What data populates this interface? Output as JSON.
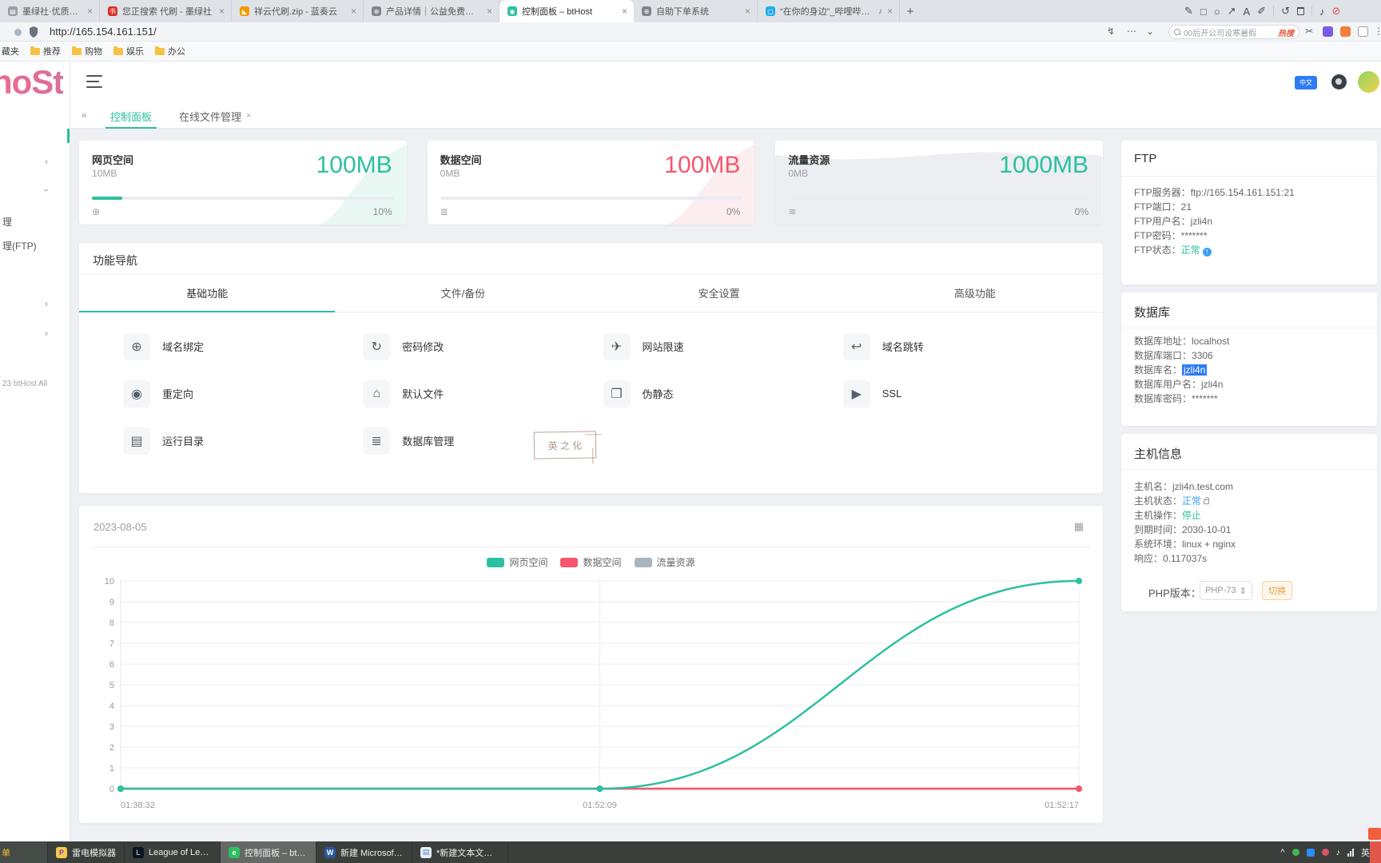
{
  "browser": {
    "tabs": [
      {
        "title": "墨绿社·优质网站源码与模板",
        "favicon": "#9aa0a6",
        "glyph": "▤"
      },
      {
        "title": "您正搜索 代刷 - 墨绿社",
        "favicon": "#d93025",
        "glyph": "书"
      },
      {
        "title": "祥云代刷.zip - 蓝奏云",
        "favicon": "#f29900",
        "glyph": "◣"
      },
      {
        "title": "产品详情｜公益免费主机互联",
        "favicon": "#80868b",
        "glyph": "⊕"
      },
      {
        "title": "控制面板 – btHost",
        "favicon": "#2cc0a0",
        "glyph": "◉",
        "active": true
      },
      {
        "title": "自助下单系统",
        "favicon": "#80868b",
        "glyph": "⊕"
      },
      {
        "title": "“在你的身边”_哔哩哔哩_b",
        "favicon": "#23ade5",
        "glyph": "▢",
        "audio": true
      }
    ],
    "new_tab_label": "+",
    "url": "http://165.154.161.151/",
    "search_placeholder": "00后开公司设寒暑假",
    "hot_label": "热搜",
    "bookmarks": [
      "藏夹",
      "推荐",
      "购物",
      "娱乐",
      "办公"
    ],
    "annotation_icons": [
      {
        "name": "pen-icon",
        "glyph": "✎"
      },
      {
        "name": "rectangle-tool-icon",
        "glyph": "□"
      },
      {
        "name": "circle-tool-icon",
        "glyph": "○"
      },
      {
        "name": "arrow-tool-icon",
        "glyph": "↗"
      },
      {
        "name": "text-tool-icon",
        "glyph": "A"
      },
      {
        "name": "brush-tool-icon",
        "glyph": "✐"
      },
      {
        "name": "undo-icon",
        "glyph": "↺"
      },
      {
        "name": "trash-icon",
        "glyph": ""
      },
      {
        "name": "speaker-icon",
        "glyph": "♪"
      },
      {
        "name": "mic-muted-icon",
        "glyph": "⊘"
      }
    ]
  },
  "sidebar": {
    "logo": "hoSt",
    "items": [
      {
        "label": "",
        "chevron": "right"
      },
      {
        "label": "",
        "chevron": "down"
      },
      {
        "label": "理",
        "chevron": ""
      },
      {
        "label": "理(FTP)",
        "chevron": ""
      },
      {
        "label": "",
        "chevron": "right"
      },
      {
        "label": "",
        "chevron": "right"
      }
    ],
    "copyright": "23 btHost All"
  },
  "app_header": {
    "lang_badge": "中文"
  },
  "page_tabs": [
    {
      "label": "控制面板",
      "active": true
    },
    {
      "label": "在线文件管理",
      "closable": true
    }
  ],
  "collapse_icon": "«",
  "stats_cards": [
    {
      "title": "网页空间",
      "used": "10MB",
      "total": "100MB",
      "percent": "10%",
      "accent": "#2cc0a0",
      "wave": "#def5ec",
      "icon": "globe-icon",
      "glyph": "⊕",
      "fill": 10
    },
    {
      "title": "数据空间",
      "used": "0MB",
      "total": "100MB",
      "percent": "0%",
      "accent": "#f5576c",
      "wave": "#fbe3e6",
      "icon": "database-icon",
      "glyph": "≣",
      "fill": 0
    },
    {
      "title": "流量资源",
      "used": "0MB",
      "total": "1000MB",
      "percent": "0%",
      "accent": "#2cc0a0",
      "wave": "#e2e5e9",
      "icon": "traffic-icon",
      "glyph": "≋",
      "fill": 0
    }
  ],
  "function_nav": {
    "title": "功能导航",
    "tabs": [
      {
        "label": "基础功能",
        "active": true
      },
      {
        "label": "文件/备份"
      },
      {
        "label": "安全设置"
      },
      {
        "label": "高级功能"
      }
    ],
    "items": [
      {
        "label": "域名绑定",
        "icon": "domain-bind-icon",
        "glyph": "⊕"
      },
      {
        "label": "密码修改",
        "icon": "password-change-icon",
        "glyph": "↻"
      },
      {
        "label": "网站限速",
        "icon": "site-speed-limit-icon",
        "glyph": "✈"
      },
      {
        "label": "域名跳转",
        "icon": "domain-redirect-icon",
        "glyph": "↩"
      },
      {
        "label": "重定向",
        "icon": "redirect-icon",
        "glyph": "◉"
      },
      {
        "label": "默认文件",
        "icon": "default-file-icon",
        "glyph": "⌂"
      },
      {
        "label": "伪静态",
        "icon": "rewrite-icon",
        "glyph": "❒"
      },
      {
        "label": "SSL",
        "icon": "ssl-icon",
        "glyph": "▶"
      },
      {
        "label": "运行目录",
        "icon": "run-directory-icon",
        "glyph": "▤"
      },
      {
        "label": "数据库管理",
        "icon": "database-manage-icon",
        "glyph": "≣"
      }
    ]
  },
  "stamp_text": "英 之 化",
  "ftp_panel": {
    "title": "FTP",
    "rows": [
      {
        "label": "FTP服务器：",
        "value": "ftp://165.154.161.151:21"
      },
      {
        "label": "FTP端口：",
        "value": "21"
      },
      {
        "label": "FTP用户名：",
        "value": "jzli4n"
      },
      {
        "label": "FTP密码：",
        "value": "*******"
      },
      {
        "label": "FTP状态：",
        "value": "正常",
        "style": "v-ok",
        "info": true
      }
    ]
  },
  "db_panel": {
    "title": "数据库",
    "rows": [
      {
        "label": "数据库地址：",
        "value": "localhost"
      },
      {
        "label": "数据库端口：",
        "value": "3306"
      },
      {
        "label": "数据库名：",
        "value": "jzli4n",
        "style": "v-sel"
      },
      {
        "label": "数据库用户名：",
        "value": "jzli4n"
      },
      {
        "label": "数据库密码：",
        "value": "*******"
      }
    ]
  },
  "host_panel": {
    "title": "主机信息",
    "rows": [
      {
        "label": "主机名：",
        "value": "jzli4n.test.com"
      },
      {
        "label": "主机状态：",
        "value": "正常",
        "style": "v-blue",
        "lock": true
      },
      {
        "label": "主机操作：",
        "value": "停止",
        "style": "v-ok",
        "action": true
      },
      {
        "label": "到期时间：",
        "value": "2030-10-01"
      },
      {
        "label": "系统环境：",
        "value": "linux + nginx"
      },
      {
        "label": "响应：",
        "value": "0.117037s"
      }
    ],
    "php_label": "PHP版本：",
    "php_value": "PHP-73",
    "php_button": "切换"
  },
  "chart_card": {
    "date": "2023-08-05"
  },
  "chart_data": {
    "type": "line",
    "x": [
      "01:38:32",
      "01:52:09",
      "01:52:17"
    ],
    "series": [
      {
        "name": "网页空间",
        "color": "#2cc0a0",
        "values": [
          0,
          0,
          10
        ]
      },
      {
        "name": "数据空间",
        "color": "#f5576c",
        "values": [
          0,
          0,
          0
        ]
      },
      {
        "name": "流量资源",
        "color": "#a9b4bf",
        "values": [
          0,
          0,
          0
        ]
      }
    ],
    "ylim": [
      0,
      10
    ],
    "ytick_step": 1,
    "grid": true,
    "legend_position": "top",
    "smooth": true
  },
  "taskbar": {
    "partial_label": "单",
    "items": [
      {
        "label": "雷电模拟器",
        "icon_bg": "#f7c948",
        "icon_fg": "#7b3fe4",
        "glyph": "P"
      },
      {
        "label": "League of Legends",
        "icon_bg": "#0a1428",
        "icon_fg": "#c8aa6e",
        "glyph": "L"
      },
      {
        "label": "控制面板 – btHost..",
        "icon_bg": "#2fbe60",
        "icon_fg": "#ffffff",
        "glyph": "e",
        "active": true
      },
      {
        "label": "新建 Microsoft W...",
        "icon_bg": "#2b579a",
        "icon_fg": "#ffffff",
        "glyph": "W"
      },
      {
        "label": "*新建文本文档.txt -..",
        "icon_bg": "#e8eef7",
        "icon_fg": "#5b87c5",
        "glyph": "▤"
      }
    ],
    "tray_lang": "英"
  }
}
